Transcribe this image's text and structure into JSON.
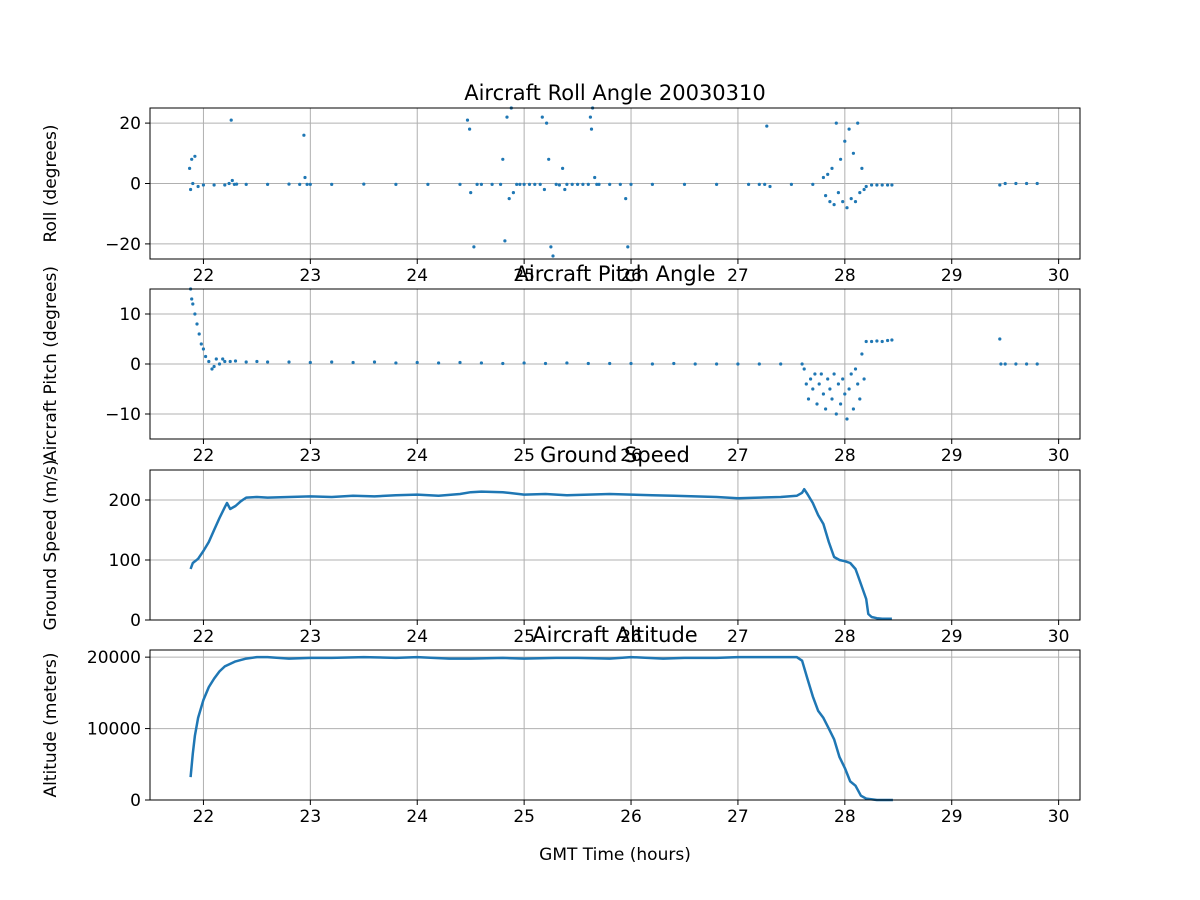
{
  "figure": {
    "background": "#ffffff",
    "series_color": "#1f77b4",
    "grid_color": "#b0b0b0"
  },
  "chart_data": [
    {
      "type": "scatter",
      "title": "Aircraft Roll Angle 20030310",
      "xlabel": "",
      "ylabel": "Roll (degrees)",
      "xlim": [
        21.5,
        30.2
      ],
      "ylim": [
        -25,
        25
      ],
      "xticks": [
        22,
        23,
        24,
        25,
        26,
        27,
        28,
        29,
        30
      ],
      "yticks": [
        -20,
        0,
        20
      ],
      "grid": true,
      "x": [
        21.87,
        21.88,
        21.89,
        21.9,
        21.92,
        21.95,
        22.0,
        22.1,
        22.2,
        22.24,
        22.26,
        22.27,
        22.29,
        22.31,
        22.4,
        22.6,
        22.8,
        22.9,
        22.94,
        22.95,
        22.97,
        23.0,
        23.2,
        23.5,
        23.8,
        24.1,
        24.4,
        24.47,
        24.49,
        24.5,
        24.53,
        24.56,
        24.6,
        24.7,
        24.78,
        24.8,
        24.82,
        24.84,
        24.86,
        24.88,
        24.9,
        24.93,
        24.96,
        25.0,
        25.05,
        25.1,
        25.15,
        25.17,
        25.19,
        25.21,
        25.23,
        25.25,
        25.27,
        25.3,
        25.33,
        25.36,
        25.38,
        25.4,
        25.45,
        25.5,
        25.55,
        25.6,
        25.62,
        25.63,
        25.64,
        25.66,
        25.68,
        25.7,
        25.8,
        25.9,
        25.95,
        25.97,
        26.0,
        26.2,
        26.5,
        26.8,
        27.1,
        27.2,
        27.25,
        27.27,
        27.3,
        27.5,
        27.7,
        27.8,
        27.82,
        27.84,
        27.86,
        27.88,
        27.9,
        27.92,
        27.94,
        27.96,
        27.98,
        28.0,
        28.02,
        28.04,
        28.06,
        28.08,
        28.1,
        28.12,
        28.14,
        28.16,
        28.18,
        28.2,
        28.25,
        28.3,
        28.35,
        28.4,
        28.44,
        29.45,
        29.5,
        29.6,
        29.7,
        29.8
      ],
      "y": [
        5,
        -2,
        8,
        0,
        9,
        -1,
        -0.5,
        -0.5,
        -0.5,
        0,
        21,
        1,
        -0.3,
        -0.2,
        -0.3,
        -0.3,
        -0.2,
        -0.3,
        16,
        2,
        -0.3,
        -0.3,
        -0.3,
        -0.2,
        -0.3,
        -0.3,
        -0.3,
        21,
        18,
        -3,
        -21,
        -0.3,
        -0.3,
        -0.3,
        -0.3,
        8,
        -19,
        22,
        -5,
        25,
        -3,
        -0.3,
        -0.3,
        -0.3,
        -0.3,
        -0.3,
        -0.3,
        22,
        -2,
        20,
        8,
        -21,
        -24,
        -0.3,
        -0.5,
        5,
        -2,
        -0.3,
        -0.3,
        -0.3,
        -0.3,
        -0.3,
        22,
        18,
        25,
        2,
        -0.3,
        -0.3,
        -0.3,
        -0.3,
        -5,
        -21,
        -0.3,
        -0.3,
        -0.3,
        -0.3,
        -0.3,
        -0.3,
        -0.3,
        19,
        -1,
        -0.3,
        -0.3,
        2,
        -4,
        3,
        -6,
        5,
        -7,
        20,
        -3,
        8,
        -6,
        14,
        -8,
        18,
        -5,
        10,
        -6,
        20,
        -3,
        5,
        -2,
        -1,
        -0.5,
        -0.5,
        -0.5,
        -0.5,
        -0.5,
        -0.5,
        0,
        0,
        0,
        0
      ]
    },
    {
      "type": "scatter",
      "title": "Aircraft Pitch Angle",
      "xlabel": "",
      "ylabel": "Aircraft Pitch (degrees)",
      "xlim": [
        21.5,
        30.2
      ],
      "ylim": [
        -15,
        15
      ],
      "xticks": [
        22,
        23,
        24,
        25,
        26,
        27,
        28,
        29,
        30
      ],
      "yticks": [
        -10,
        0,
        10
      ],
      "grid": true,
      "x": [
        21.88,
        21.89,
        21.9,
        21.92,
        21.94,
        21.96,
        21.98,
        22.0,
        22.02,
        22.05,
        22.08,
        22.1,
        22.12,
        22.15,
        22.18,
        22.2,
        22.25,
        22.3,
        22.4,
        22.5,
        22.6,
        22.8,
        23.0,
        23.2,
        23.4,
        23.6,
        23.8,
        24.0,
        24.2,
        24.4,
        24.6,
        24.8,
        25.0,
        25.2,
        25.4,
        25.6,
        25.8,
        26.0,
        26.2,
        26.4,
        26.6,
        26.8,
        27.0,
        27.2,
        27.4,
        27.6,
        27.62,
        27.64,
        27.66,
        27.68,
        27.7,
        27.72,
        27.74,
        27.76,
        27.78,
        27.8,
        27.82,
        27.84,
        27.86,
        27.88,
        27.9,
        27.92,
        27.94,
        27.96,
        27.98,
        28.0,
        28.02,
        28.04,
        28.06,
        28.08,
        28.1,
        28.12,
        28.14,
        28.16,
        28.18,
        28.2,
        28.25,
        28.3,
        28.35,
        28.4,
        28.44,
        29.45,
        29.46,
        29.5,
        29.6,
        29.7,
        29.8
      ],
      "y": [
        15,
        13,
        12,
        10,
        8,
        6,
        4,
        3,
        1.5,
        0.5,
        -1,
        -0.5,
        1,
        0,
        1,
        0.5,
        0.5,
        0.6,
        0.4,
        0.5,
        0.4,
        0.4,
        0.3,
        0.4,
        0.3,
        0.4,
        0.2,
        0.3,
        0.2,
        0.3,
        0.2,
        0.1,
        0.2,
        0.1,
        0.2,
        0.1,
        0.1,
        0.1,
        0,
        0.1,
        0,
        0,
        0,
        0,
        0,
        0,
        -1,
        -4,
        -7,
        -3,
        -5,
        -2,
        -8,
        -4,
        -2,
        -6,
        -9,
        -3,
        -5,
        -7,
        -2,
        -10,
        -4,
        -8,
        -3,
        -6,
        -11,
        -5,
        -2,
        -9,
        -1,
        -4,
        -7,
        2,
        -3,
        4.5,
        4.5,
        4.6,
        4.5,
        4.7,
        4.8,
        5,
        0,
        0,
        0,
        0,
        0
      ]
    },
    {
      "type": "line",
      "title": "Ground Speed",
      "xlabel": "",
      "ylabel": "Ground Speed (m/s)",
      "xlim": [
        21.5,
        30.2
      ],
      "ylim": [
        0,
        250
      ],
      "xticks": [
        22,
        23,
        24,
        25,
        26,
        27,
        28,
        29,
        30
      ],
      "yticks": [
        0,
        100,
        200
      ],
      "grid": true,
      "x": [
        21.88,
        21.9,
        21.95,
        22.0,
        22.05,
        22.1,
        22.15,
        22.2,
        22.22,
        22.25,
        22.3,
        22.35,
        22.4,
        22.5,
        22.6,
        22.8,
        23.0,
        23.2,
        23.4,
        23.6,
        23.8,
        24.0,
        24.2,
        24.4,
        24.5,
        24.6,
        24.8,
        25.0,
        25.2,
        25.4,
        25.6,
        25.8,
        26.0,
        26.2,
        26.4,
        26.6,
        26.8,
        27.0,
        27.2,
        27.4,
        27.55,
        27.6,
        27.62,
        27.65,
        27.7,
        27.75,
        27.8,
        27.85,
        27.9,
        27.95,
        28.0,
        28.05,
        28.1,
        28.12,
        28.15,
        28.2,
        28.22,
        28.25,
        28.3,
        28.35,
        28.4,
        28.44
      ],
      "y": [
        85,
        95,
        102,
        115,
        130,
        150,
        170,
        188,
        195,
        185,
        190,
        198,
        204,
        205,
        204,
        205,
        206,
        205,
        207,
        206,
        208,
        209,
        207,
        210,
        213,
        214,
        213,
        209,
        210,
        208,
        209,
        210,
        209,
        208,
        207,
        206,
        205,
        203,
        204,
        205,
        207,
        212,
        218,
        210,
        195,
        175,
        160,
        130,
        105,
        100,
        98,
        95,
        85,
        75,
        60,
        35,
        10,
        5,
        3,
        2,
        2,
        2
      ]
    },
    {
      "type": "line",
      "title": "Aircraft Altitude",
      "xlabel": "GMT Time (hours)",
      "ylabel": "Altitude (meters)",
      "xlim": [
        21.5,
        30.2
      ],
      "ylim": [
        0,
        21000
      ],
      "xticks": [
        22,
        23,
        24,
        25,
        26,
        27,
        28,
        29,
        30
      ],
      "yticks": [
        0,
        10000,
        20000
      ],
      "grid": true,
      "x": [
        21.88,
        21.9,
        21.92,
        21.95,
        22.0,
        22.05,
        22.1,
        22.15,
        22.2,
        22.3,
        22.4,
        22.5,
        22.6,
        22.8,
        23.0,
        23.2,
        23.5,
        23.8,
        24.0,
        24.3,
        24.5,
        24.8,
        25.0,
        25.3,
        25.5,
        25.8,
        26.0,
        26.3,
        26.5,
        26.8,
        27.0,
        27.3,
        27.55,
        27.6,
        27.65,
        27.7,
        27.75,
        27.8,
        27.85,
        27.9,
        27.95,
        28.0,
        28.05,
        28.1,
        28.15,
        28.2,
        28.3,
        28.4,
        28.45
      ],
      "y": [
        3200,
        6500,
        9000,
        11500,
        14000,
        15800,
        17000,
        18000,
        18700,
        19400,
        19800,
        20000,
        20000,
        19800,
        19900,
        19900,
        20000,
        19900,
        20000,
        19800,
        19800,
        19900,
        19800,
        19900,
        19900,
        19800,
        20000,
        19800,
        19900,
        19900,
        20000,
        20000,
        20000,
        19500,
        17000,
        14500,
        12500,
        11500,
        10000,
        8500,
        6000,
        4500,
        2600,
        2000,
        600,
        200,
        0,
        0,
        0
      ]
    }
  ]
}
